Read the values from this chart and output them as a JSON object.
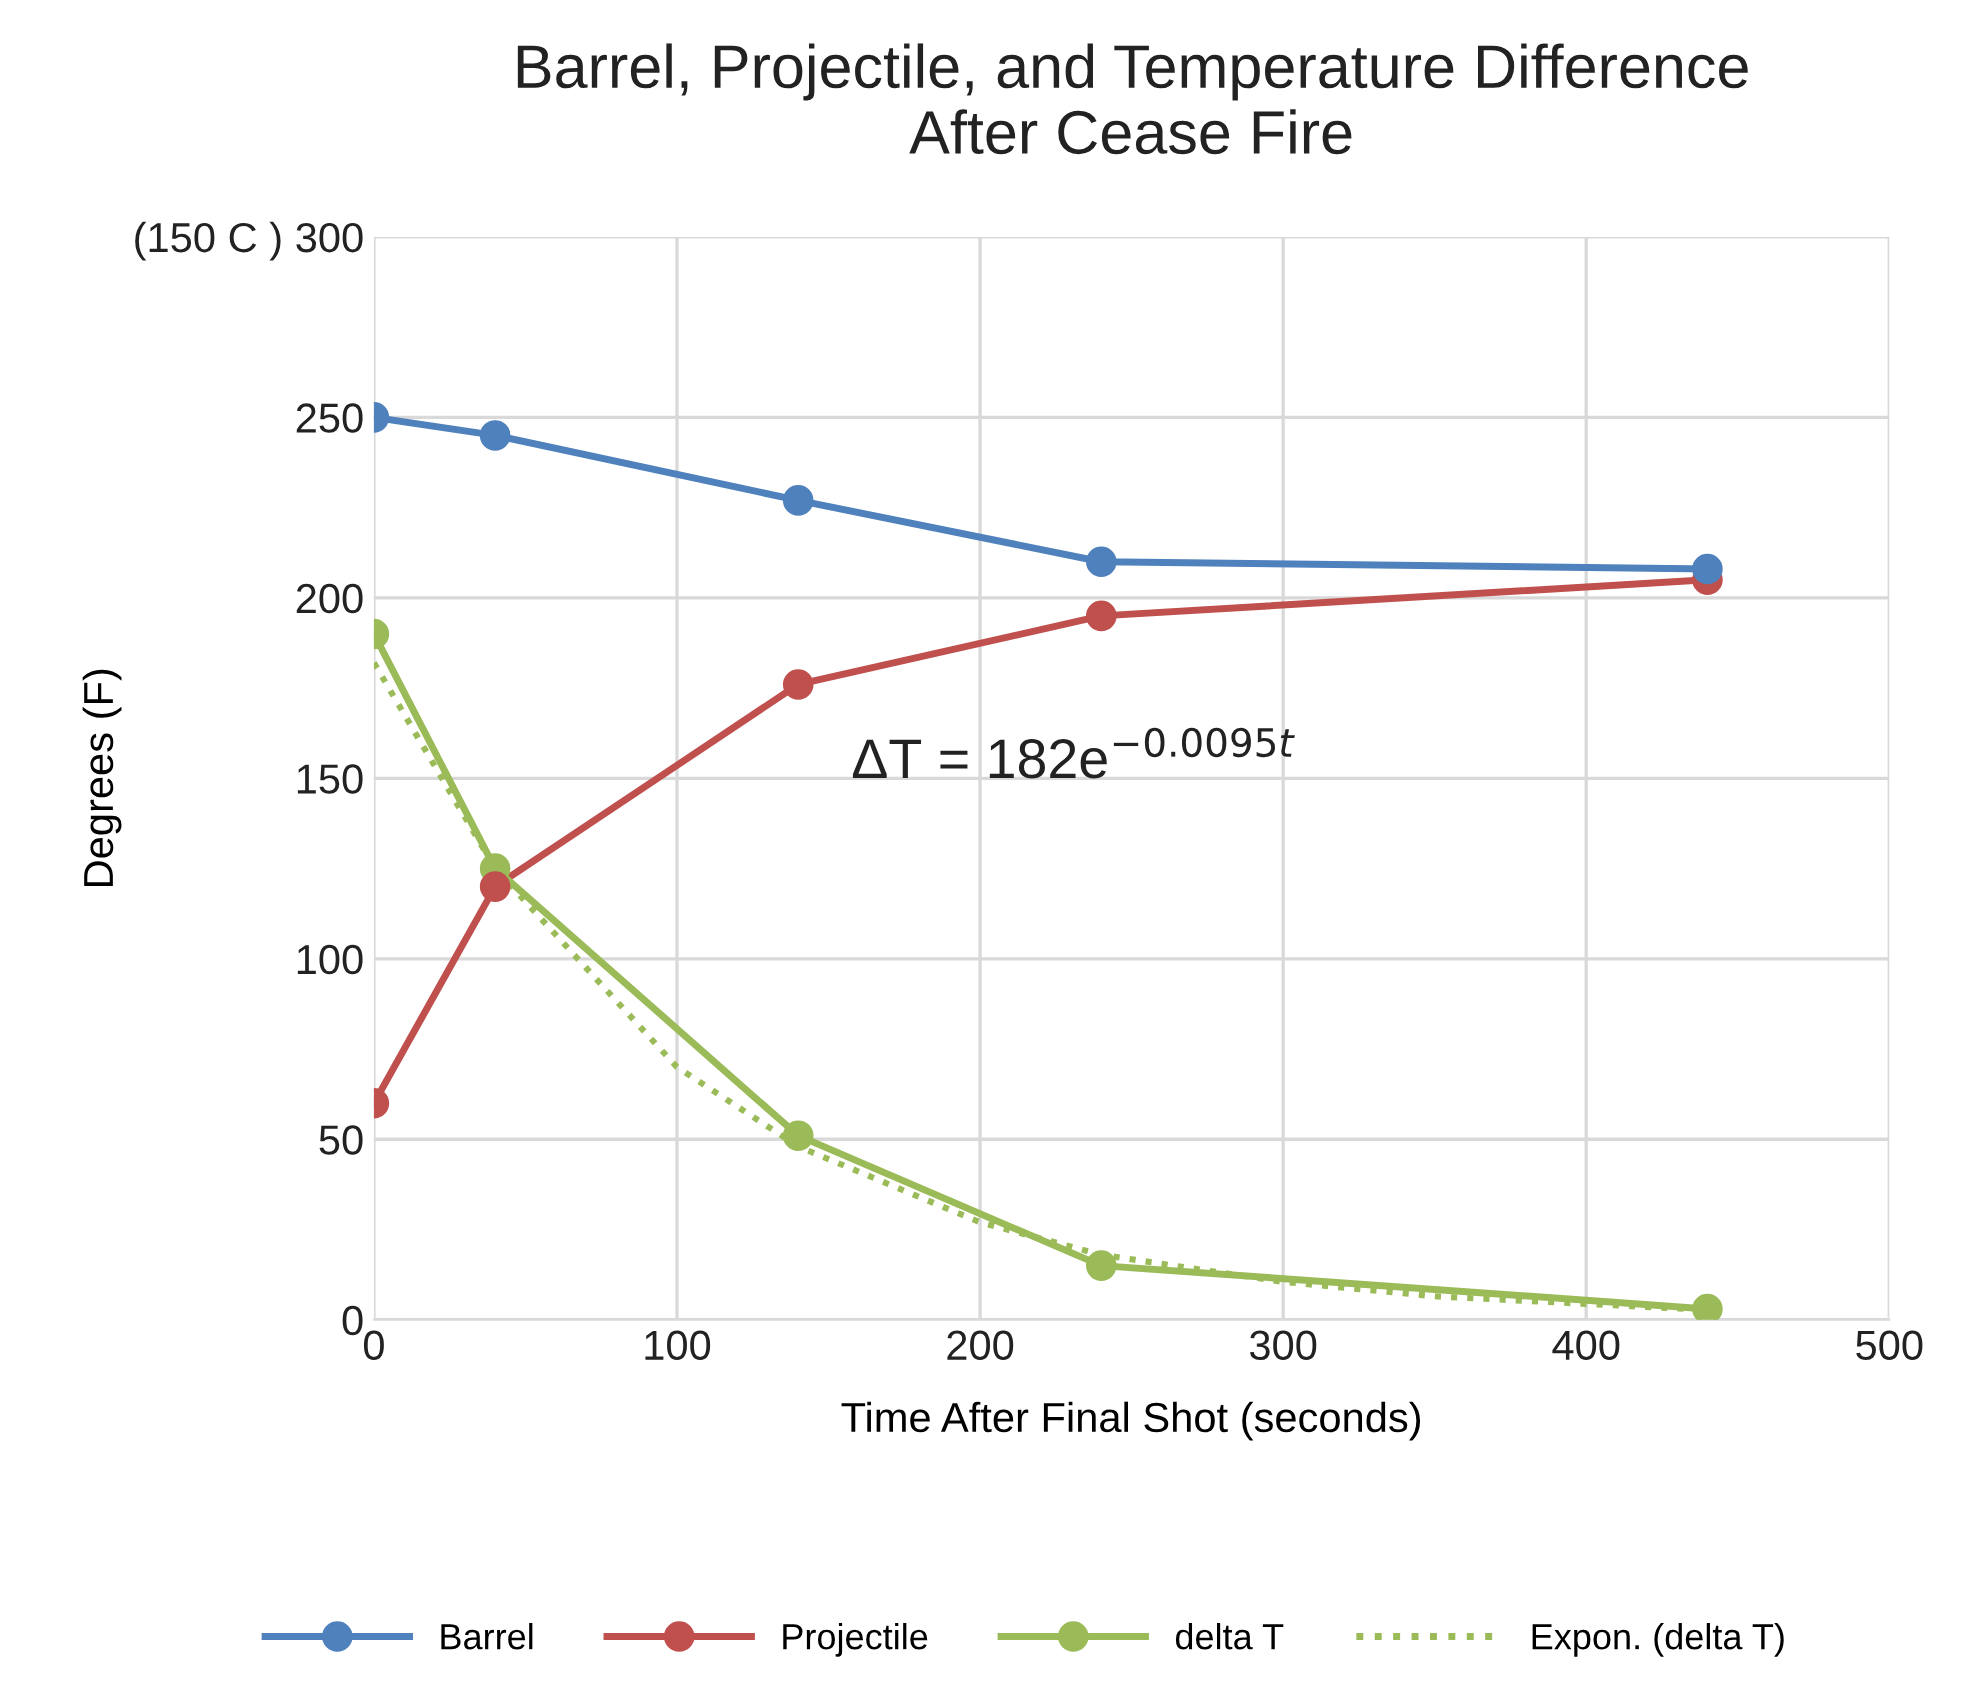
{
  "chart_data": {
    "type": "line",
    "title": "Barrel, Projectile, and Temperature Difference\nAfter Cease Fire",
    "xlabel": "Time After Final Shot (seconds)",
    "ylabel": "Degrees (F)",
    "xlim": [
      0,
      500
    ],
    "xticks": [
      0,
      100,
      200,
      300,
      400,
      500
    ],
    "ylim": [
      0,
      300
    ],
    "yticks": [
      0,
      50,
      100,
      150,
      200,
      250,
      {
        "value": 300,
        "label": "(150 C ) 300"
      }
    ],
    "grid": true,
    "legend": "bottom",
    "marker": "circle",
    "line_style": "solid",
    "annotations": [
      "ΔT = 182e$^{−0.0095t}$"
    ],
    "series": [
      {
        "name": "Barrel",
        "color": "#4f81bd",
        "x": [
          0,
          40,
          140,
          240,
          440
        ],
        "values": [
          250,
          245,
          227,
          210,
          208
        ]
      },
      {
        "name": "Projectile",
        "color": "#c0504d",
        "x": [
          0,
          40,
          140,
          240,
          440
        ],
        "values": [
          60,
          120,
          176,
          195,
          205
        ]
      },
      {
        "name": "delta T",
        "color": "#9bbb59",
        "x": [
          0,
          40,
          140,
          240,
          440
        ],
        "values": [
          190,
          125,
          51,
          15,
          3
        ]
      },
      {
        "name": "Expon. (delta T)",
        "color": "#9bbb59",
        "marker": "none",
        "line_style": "dotted",
        "x": [
          0,
          40,
          100,
          140,
          200,
          240,
          300,
          350,
          440
        ],
        "values": [
          182,
          125,
          70,
          48,
          27,
          18,
          10.5,
          6.5,
          2.7
        ]
      }
    ]
  }
}
